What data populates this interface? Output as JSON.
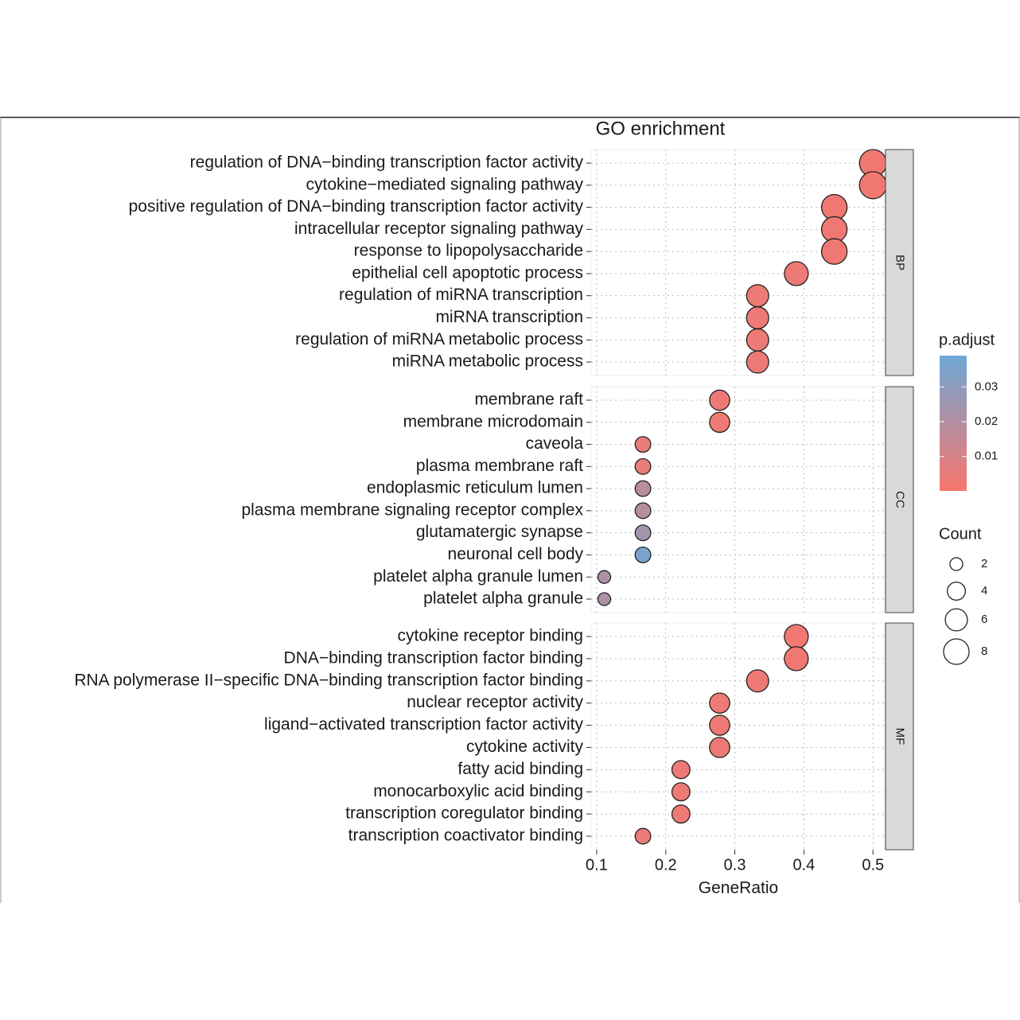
{
  "chart_data": {
    "type": "dotplot",
    "title": "GO enrichment",
    "x_label": "GeneRatio",
    "xlim": [
      0.092,
      0.517
    ],
    "xticks": [
      0.1,
      0.2,
      0.3,
      0.4,
      0.5
    ],
    "grid": true,
    "facets": [
      {
        "name": "BP",
        "categories": [
          "regulation of DNA−binding transcription factor activity",
          "cytokine−mediated signaling pathway",
          "positive regulation of DNA−binding transcription factor activity",
          "intracellular receptor signaling pathway",
          "response to lipopolysaccharide",
          "epithelial cell apoptotic process",
          "regulation of miRNA transcription",
          "miRNA transcription",
          "regulation of miRNA metabolic process",
          "miRNA metabolic process"
        ],
        "x": [
          0.5,
          0.5,
          0.444,
          0.444,
          0.444,
          0.389,
          0.333,
          0.333,
          0.333,
          0.333
        ],
        "size": [
          9,
          9,
          8,
          8,
          8,
          7,
          6,
          6,
          6,
          6
        ],
        "color": [
          0.002,
          0.002,
          0.002,
          0.002,
          0.002,
          0.003,
          0.003,
          0.003,
          0.003,
          0.003
        ]
      },
      {
        "name": "CC",
        "categories": [
          "membrane raft",
          "membrane microdomain",
          "caveola",
          "plasma membrane raft",
          "endoplasmic reticulum lumen",
          "plasma membrane signaling receptor complex",
          "glutamatergic synapse",
          "neuronal cell body",
          "platelet alpha granule lumen",
          "platelet alpha granule"
        ],
        "x": [
          0.278,
          0.278,
          0.167,
          0.167,
          0.167,
          0.167,
          0.167,
          0.167,
          0.111,
          0.111
        ],
        "size": [
          5,
          5,
          3,
          3,
          3,
          3,
          3,
          3,
          2,
          2
        ],
        "color": [
          0.003,
          0.003,
          0.005,
          0.005,
          0.018,
          0.019,
          0.024,
          0.036,
          0.021,
          0.021
        ]
      },
      {
        "name": "MF",
        "categories": [
          "cytokine receptor binding",
          "DNA−binding transcription factor binding",
          "RNA polymerase II−specific DNA−binding transcription factor binding",
          "nuclear receptor activity",
          "ligand−activated transcription factor activity",
          "cytokine activity",
          "fatty acid binding",
          "monocarboxylic acid binding",
          "transcription coregulator binding",
          "transcription coactivator binding"
        ],
        "x": [
          0.389,
          0.389,
          0.333,
          0.278,
          0.278,
          0.278,
          0.222,
          0.222,
          0.222,
          0.167
        ],
        "size": [
          7,
          7,
          6,
          5,
          5,
          5,
          4,
          4,
          4,
          3
        ],
        "color": [
          0.002,
          0.002,
          0.003,
          0.003,
          0.003,
          0.003,
          0.003,
          0.003,
          0.003,
          0.004
        ]
      }
    ],
    "color_legend": {
      "title": "p.adjust",
      "lim": [
        0.0001,
        0.039
      ],
      "ticks": [
        0.01,
        0.02,
        0.03
      ],
      "colors": [
        "#f8766d",
        "#6fa8d6"
      ]
    },
    "size_legend": {
      "title": "Count",
      "values": [
        2,
        4,
        6,
        8
      ]
    }
  }
}
